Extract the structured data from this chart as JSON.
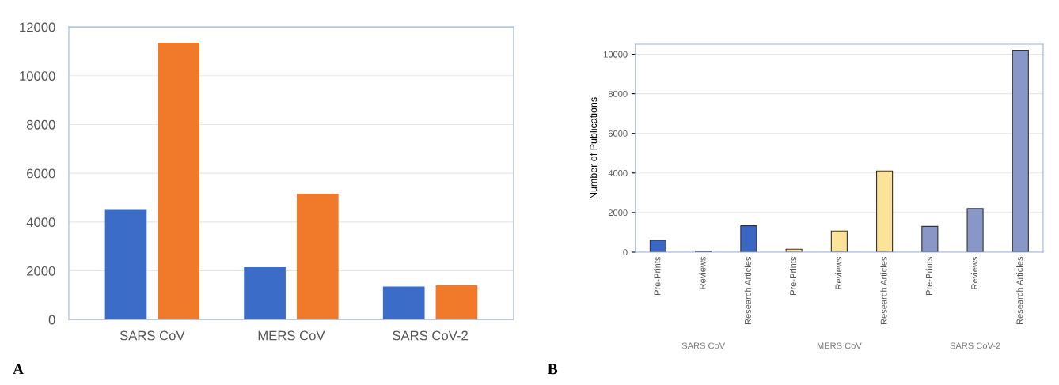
{
  "chart_data": [
    {
      "type": "bar",
      "title": "A",
      "categories": [
        "SARS CoV",
        "MERS CoV",
        "SARS CoV-2"
      ],
      "series": [
        {
          "color": "#3a6cc8",
          "values": [
            4500,
            2150,
            1350
          ]
        },
        {
          "color": "#f07a2a",
          "values": [
            11350,
            5150,
            1400
          ]
        }
      ],
      "ylim": [
        0,
        12000
      ],
      "yticks": [
        0,
        2000,
        4000,
        6000,
        8000,
        10000,
        12000
      ],
      "grid": "y"
    },
    {
      "type": "bar",
      "title": "B",
      "ylabel": "Number of Publications",
      "categories": [
        "Pre-Prints",
        "Reviews",
        "Research Articles",
        "Pre-Prints",
        "Reviews",
        "Research Articles",
        "Pre-Prints",
        "Reviews",
        "Research Articles"
      ],
      "values": [
        600,
        50,
        1330,
        150,
        1070,
        4100,
        1300,
        2200,
        10200
      ],
      "colors": [
        "#3a66c4",
        "#3a66c4",
        "#3a66c4",
        "#fbe49a",
        "#fbe49a",
        "#fbe49a",
        "#8896c8",
        "#8896c8",
        "#8896c8"
      ],
      "annotations": [
        "SARS CoV",
        "MERS CoV",
        "SARS CoV-2"
      ],
      "ylim": [
        0,
        10500
      ],
      "yticks": [
        0,
        2000,
        4000,
        6000,
        8000,
        10000
      ],
      "grid": "y"
    }
  ]
}
